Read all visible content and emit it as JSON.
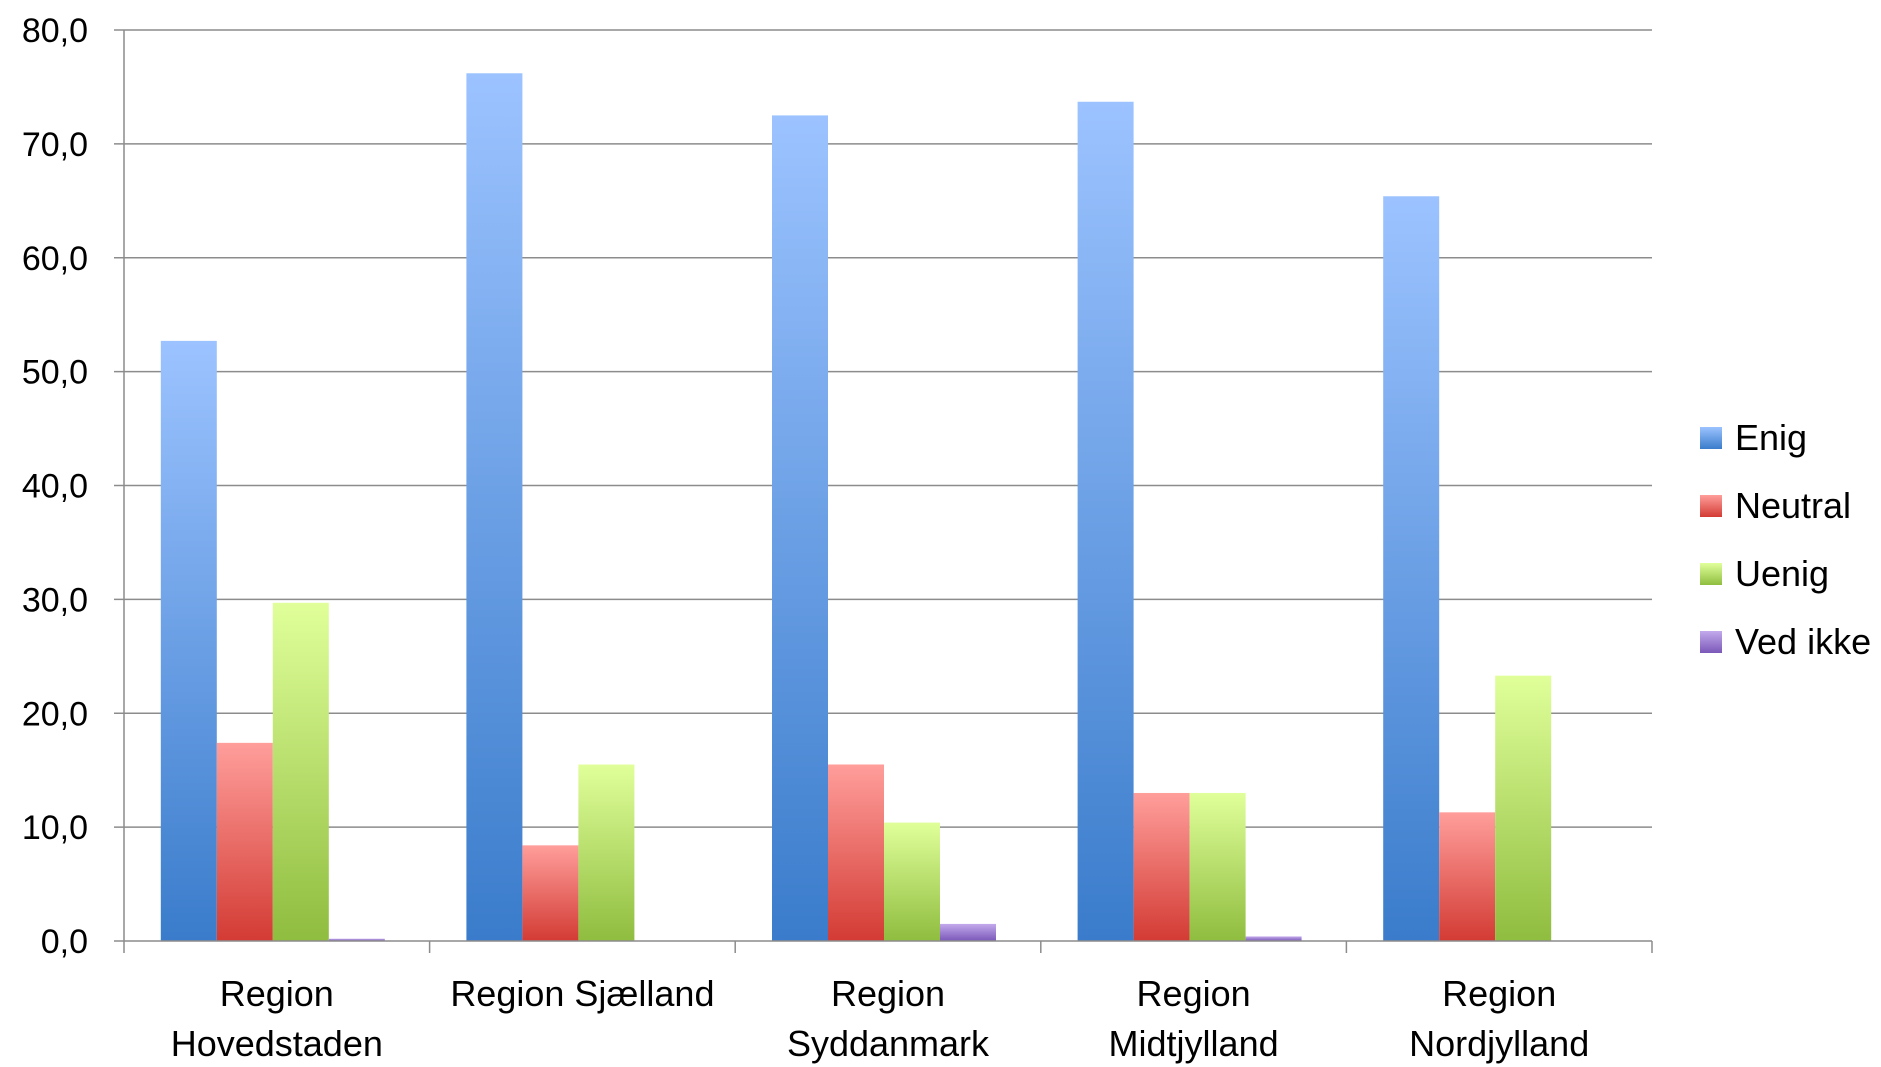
{
  "chart_data": {
    "type": "bar",
    "title": "",
    "xlabel": "",
    "ylabel": "",
    "ylim": [
      0,
      80
    ],
    "ytick_step": 10,
    "ytick_labels": [
      "0,0",
      "10,0",
      "20,0",
      "30,0",
      "40,0",
      "50,0",
      "60,0",
      "70,0",
      "80,0"
    ],
    "grid": "horizontal",
    "legend_position": "right",
    "categories": [
      [
        "Region",
        "Hovedstaden"
      ],
      [
        "Region Sjælland"
      ],
      [
        "Region",
        "Syddanmark"
      ],
      [
        "Region",
        "Midtjylland"
      ],
      [
        "Region",
        "Nordjylland"
      ]
    ],
    "series": [
      {
        "name": "Enig",
        "values": [
          52.7,
          76.2,
          72.5,
          73.7,
          65.4
        ],
        "color_top": "#9cc3ff",
        "color_bottom": "#3a7ccb"
      },
      {
        "name": "Neutral",
        "values": [
          17.4,
          8.4,
          15.5,
          13.0,
          11.3
        ],
        "color_top": "#ff9e9b",
        "color_bottom": "#d33b34"
      },
      {
        "name": "Uenig",
        "values": [
          29.7,
          15.5,
          10.4,
          13.0,
          23.3
        ],
        "color_top": "#e0ff9a",
        "color_bottom": "#8fbd3f"
      },
      {
        "name": "Ved ikke",
        "values": [
          0.2,
          0.0,
          1.5,
          0.4,
          0.0
        ],
        "color_top": "#c3a9ec",
        "color_bottom": "#7a58b8"
      }
    ]
  }
}
